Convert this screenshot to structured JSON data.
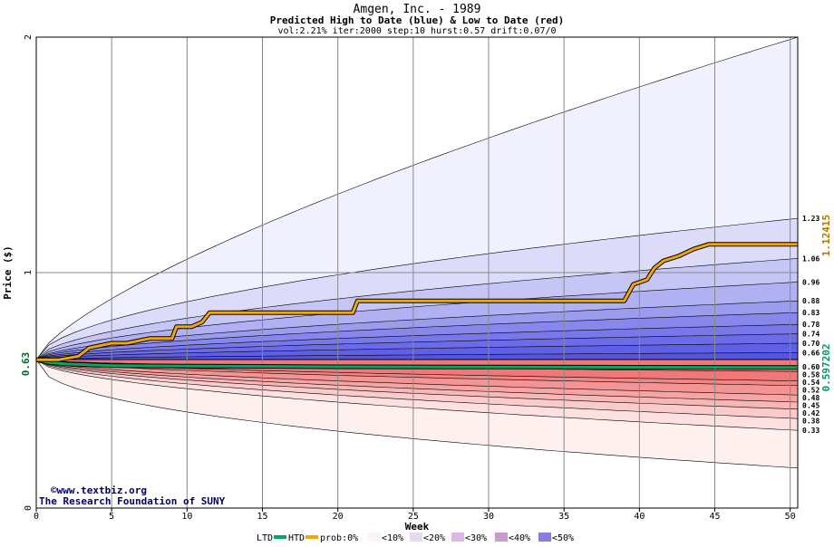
{
  "chart_data": {
    "type": "area",
    "title": "Amgen, Inc. - 1989",
    "subtitle": "Predicted High to Date (blue) &  Low to Date (red)",
    "params": "vol:2.21% iter:2000 step:10 hurst:0.57 drift:0.07/0",
    "xlabel": "Week",
    "ylabel": "Price ($)",
    "xlim": [
      0,
      50.5
    ],
    "ylim": [
      0,
      2
    ],
    "x_ticks": [
      0,
      5,
      10,
      15,
      20,
      25,
      30,
      35,
      40,
      45,
      50
    ],
    "y_ticks": [
      0,
      1,
      2
    ],
    "start_price": 0.63,
    "start_price_label": "0.63",
    "high_band_levels": [
      1.23,
      1.06,
      0.96,
      0.88,
      0.83,
      0.78,
      0.74,
      0.7,
      0.66,
      0.6
    ],
    "low_band_levels": [
      0.58,
      0.54,
      0.52,
      0.48,
      0.45,
      0.42,
      0.38,
      0.33
    ],
    "outer_high_end": 2.0,
    "outer_low_end": 0.17,
    "right_labels": [
      "1.23",
      "1.06",
      "0.96",
      "0.88",
      "0.83",
      "0.78",
      "0.74",
      "0.70",
      "0.66",
      "0.60",
      "0.58",
      "0.54",
      "0.52",
      "0.48",
      "0.45",
      "0.42",
      "0.38",
      "0.33"
    ],
    "htd_line": {
      "name": "HTD",
      "end_value_label": "1.12415",
      "points": [
        [
          0,
          0.63
        ],
        [
          1.5,
          0.63
        ],
        [
          2.8,
          0.645
        ],
        [
          3.5,
          0.68
        ],
        [
          5,
          0.7
        ],
        [
          6,
          0.7
        ],
        [
          7.5,
          0.72
        ],
        [
          9,
          0.72
        ],
        [
          9.3,
          0.77
        ],
        [
          10.3,
          0.77
        ],
        [
          11,
          0.79
        ],
        [
          11.5,
          0.83
        ],
        [
          21,
          0.83
        ],
        [
          21.3,
          0.88
        ],
        [
          39,
          0.88
        ],
        [
          39.6,
          0.95
        ],
        [
          40.5,
          0.97
        ],
        [
          41,
          1.02
        ],
        [
          41.6,
          1.05
        ],
        [
          42.6,
          1.07
        ],
        [
          43.6,
          1.1
        ],
        [
          44.6,
          1.12
        ],
        [
          50.5,
          1.12
        ]
      ]
    },
    "ltd_line": {
      "name": "LTD",
      "end_value_label": "0.597202",
      "points": [
        [
          0,
          0.63
        ],
        [
          0.8,
          0.618
        ],
        [
          2,
          0.612
        ],
        [
          5,
          0.605
        ],
        [
          10,
          0.603
        ],
        [
          20,
          0.6
        ],
        [
          30,
          0.599
        ],
        [
          40,
          0.598
        ],
        [
          50.5,
          0.597
        ]
      ]
    },
    "colors": {
      "band_blue": [
        "#f0f0ff",
        "#dcdcfa",
        "#c6c6f6",
        "#b0b0f2",
        "#9c9cee",
        "#8888ec",
        "#7878ea",
        "#6c6ce8",
        "#6060e6",
        "#5555e0"
      ],
      "band_red": [
        "#fff0f0",
        "#fde0e0",
        "#fbcaca",
        "#f8b6b6",
        "#f6a4a4",
        "#f49494",
        "#f28686",
        "#f07878"
      ],
      "htd": "#f0a800",
      "ltd": "#00aa66",
      "grid": "#888888"
    },
    "credit_line1": "©www.textbiz.org",
    "credit_line2": "The Research Foundation of SUNY",
    "legend": {
      "ltd": "LTD",
      "htd": "HTD",
      "prob_prefix": "prob:0%",
      "items": [
        "<10%",
        "<20%",
        "<30%",
        "<40%",
        "<50%"
      ]
    }
  }
}
